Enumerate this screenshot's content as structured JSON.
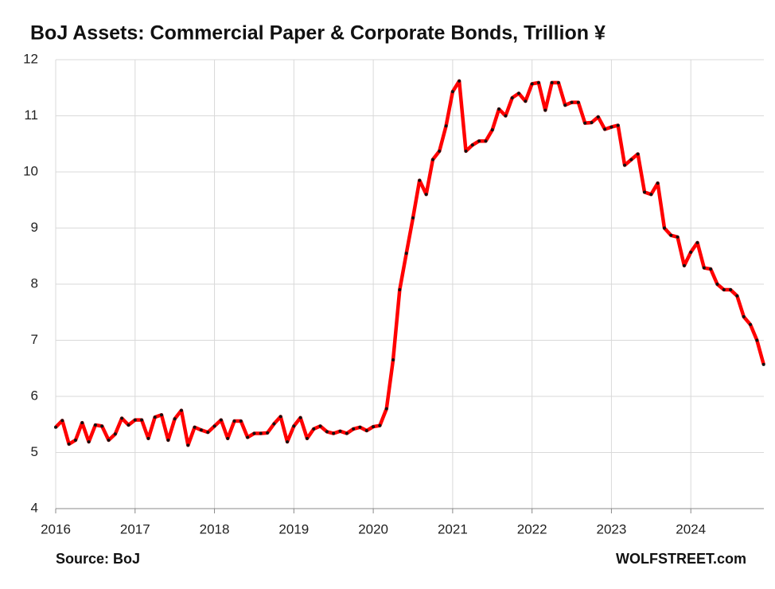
{
  "chart_data": {
    "type": "line",
    "title": "BoJ Assets: Commercial Paper & Corporate Bonds, Trillion ¥",
    "source": "Source: BoJ",
    "watermark": "WOLFSTREET.com",
    "color": "#ff0000",
    "marker_color": "#111111",
    "grid": true,
    "xlim": [
      2016,
      2024.92
    ],
    "xticks": [
      2016,
      2017,
      2018,
      2019,
      2020,
      2021,
      2022,
      2023,
      2024
    ],
    "ylim": [
      4,
      12
    ],
    "yticks": [
      4,
      5,
      6,
      7,
      8,
      9,
      10,
      11,
      12
    ],
    "x": [
      2016,
      2016.083,
      2016.167,
      2016.25,
      2016.333,
      2016.417,
      2016.5,
      2016.583,
      2016.667,
      2016.75,
      2016.833,
      2016.917,
      2017,
      2017.083,
      2017.167,
      2017.25,
      2017.333,
      2017.417,
      2017.5,
      2017.583,
      2017.667,
      2017.75,
      2017.833,
      2017.917,
      2018,
      2018.083,
      2018.167,
      2018.25,
      2018.333,
      2018.417,
      2018.5,
      2018.583,
      2018.667,
      2018.75,
      2018.833,
      2018.917,
      2019,
      2019.083,
      2019.167,
      2019.25,
      2019.333,
      2019.417,
      2019.5,
      2019.583,
      2019.667,
      2019.75,
      2019.833,
      2019.917,
      2020,
      2020.083,
      2020.167,
      2020.25,
      2020.333,
      2020.417,
      2020.5,
      2020.583,
      2020.667,
      2020.75,
      2020.833,
      2020.917,
      2021,
      2021.083,
      2021.167,
      2021.25,
      2021.333,
      2021.417,
      2021.5,
      2021.583,
      2021.667,
      2021.75,
      2021.833,
      2021.917,
      2022,
      2022.083,
      2022.167,
      2022.25,
      2022.333,
      2022.417,
      2022.5,
      2022.583,
      2022.667,
      2022.75,
      2022.833,
      2022.917,
      2023,
      2023.083,
      2023.167,
      2023.25,
      2023.333,
      2023.417,
      2023.5,
      2023.583,
      2023.667,
      2023.75,
      2023.833,
      2023.917,
      2024,
      2024.083,
      2024.167,
      2024.25,
      2024.333,
      2024.417,
      2024.5,
      2024.583,
      2024.667,
      2024.75,
      2024.833,
      2024.917
    ],
    "values": [
      5.45,
      5.57,
      5.15,
      5.22,
      5.53,
      5.19,
      5.49,
      5.47,
      5.22,
      5.33,
      5.61,
      5.49,
      5.58,
      5.58,
      5.25,
      5.63,
      5.67,
      5.22,
      5.6,
      5.75,
      5.13,
      5.45,
      5.4,
      5.36,
      5.47,
      5.58,
      5.25,
      5.56,
      5.56,
      5.27,
      5.34,
      5.34,
      5.35,
      5.51,
      5.64,
      5.19,
      5.47,
      5.62,
      5.25,
      5.42,
      5.47,
      5.37,
      5.34,
      5.38,
      5.34,
      5.42,
      5.45,
      5.39,
      5.46,
      5.48,
      5.78,
      6.65,
      7.9,
      8.55,
      9.18,
      9.85,
      9.6,
      10.22,
      10.37,
      10.82,
      11.43,
      11.62,
      10.37,
      10.48,
      10.55,
      10.55,
      10.75,
      11.12,
      11.0,
      11.32,
      11.4,
      11.26,
      11.57,
      11.59,
      11.1,
      11.59,
      11.59,
      11.19,
      11.24,
      11.24,
      10.87,
      10.88,
      10.98,
      10.76,
      10.8,
      10.83,
      10.12,
      10.22,
      10.32,
      9.64,
      9.6,
      9.8,
      9.0,
      8.87,
      8.84,
      8.33,
      8.57,
      8.74,
      8.29,
      8.27,
      8.0,
      7.9,
      7.9,
      7.79,
      7.42,
      7.28,
      7.0,
      6.57
    ]
  }
}
